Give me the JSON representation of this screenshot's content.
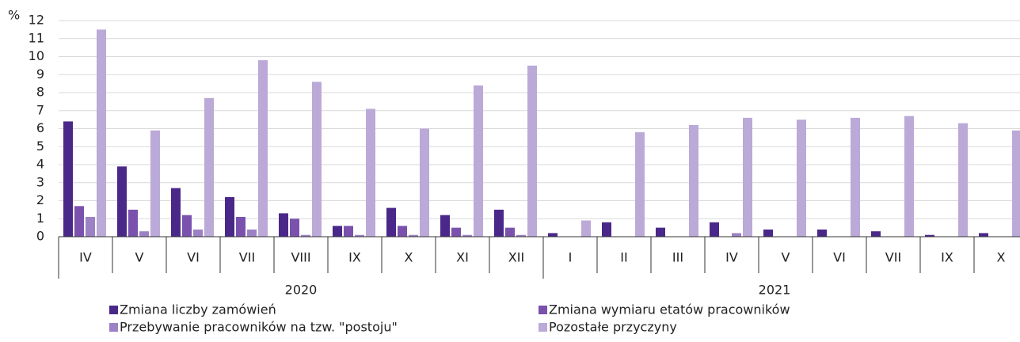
{
  "chart_data": {
    "type": "bar",
    "y_unit": "%",
    "groups": [
      {
        "name": "2020",
        "categories": [
          "IV",
          "V",
          "VI",
          "VII",
          "VIII",
          "IX",
          "X",
          "XI",
          "XII"
        ]
      },
      {
        "name": "2021",
        "categories": [
          "I",
          "II",
          "III",
          "IV",
          "V",
          "VI",
          "VII",
          "IX",
          "X"
        ]
      }
    ],
    "series": [
      {
        "name": "Zmiana liczby zamówień",
        "color": "#4a2889",
        "values": [
          6.4,
          3.9,
          2.7,
          2.2,
          1.3,
          0.6,
          1.6,
          1.2,
          1.5,
          0.2,
          0.8,
          0.5,
          0.8,
          0.4,
          0.4,
          0.3,
          0.1,
          0.2
        ]
      },
      {
        "name": "Zmiana wymiaru etatów pracowników",
        "color": "#7a52ad",
        "values": [
          1.7,
          1.5,
          1.2,
          1.1,
          1.0,
          0.6,
          0.6,
          0.5,
          0.5,
          0,
          0,
          0,
          0,
          0,
          0,
          0,
          0,
          0
        ]
      },
      {
        "name": "Przebywanie pracowników na tzw. \"postoju\"",
        "color": "#9c82c4",
        "values": [
          1.1,
          0.3,
          0.4,
          0.4,
          0.1,
          0.1,
          0.1,
          0.1,
          0.1,
          0,
          0,
          0,
          0.2,
          0,
          0,
          0,
          0,
          0
        ]
      },
      {
        "name": "Pozostałe przyczyny",
        "color": "#bba9d8",
        "values": [
          11.5,
          5.9,
          7.7,
          9.8,
          8.6,
          7.1,
          6.0,
          8.4,
          9.5,
          0.9,
          5.8,
          6.2,
          6.6,
          6.5,
          6.6,
          6.7,
          6.3,
          5.9
        ]
      }
    ],
    "ylim": [
      0,
      12
    ],
    "yticks": [
      0,
      1,
      2,
      3,
      4,
      5,
      6,
      7,
      8,
      9,
      10,
      11,
      12
    ],
    "grid": true
  }
}
